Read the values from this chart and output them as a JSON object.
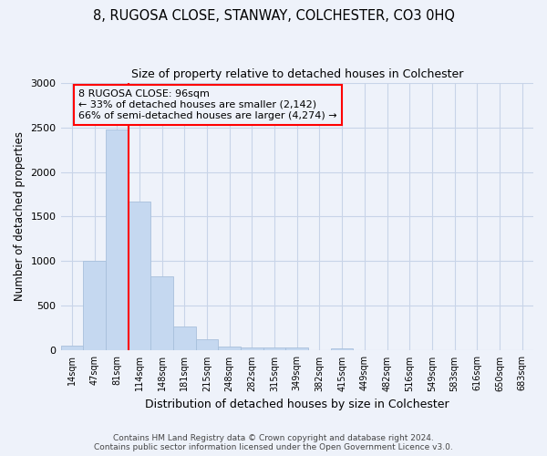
{
  "title": "8, RUGOSA CLOSE, STANWAY, COLCHESTER, CO3 0HQ",
  "subtitle": "Size of property relative to detached houses in Colchester",
  "xlabel": "Distribution of detached houses by size in Colchester",
  "ylabel": "Number of detached properties",
  "categories": [
    "14sqm",
    "47sqm",
    "81sqm",
    "114sqm",
    "148sqm",
    "181sqm",
    "215sqm",
    "248sqm",
    "282sqm",
    "315sqm",
    "349sqm",
    "382sqm",
    "415sqm",
    "449sqm",
    "482sqm",
    "516sqm",
    "549sqm",
    "583sqm",
    "616sqm",
    "650sqm",
    "683sqm"
  ],
  "values": [
    55,
    1000,
    2470,
    1670,
    830,
    270,
    130,
    50,
    40,
    40,
    35,
    0,
    20,
    0,
    0,
    0,
    0,
    0,
    0,
    0,
    0
  ],
  "bar_color": "#c5d8f0",
  "bar_edgecolor": "#a8c0dc",
  "vline_color": "red",
  "vline_index": 2.5,
  "annotation_title": "8 RUGOSA CLOSE: 96sqm",
  "annotation_line1": "← 33% of detached houses are smaller (2,142)",
  "annotation_line2": "66% of semi-detached houses are larger (4,274) →",
  "annotation_box_edgecolor": "red",
  "ylim": [
    0,
    3000
  ],
  "yticks": [
    0,
    500,
    1000,
    1500,
    2000,
    2500,
    3000
  ],
  "grid_color": "#c8d4e8",
  "background_color": "#eef2fa",
  "footer_line1": "Contains HM Land Registry data © Crown copyright and database right 2024.",
  "footer_line2": "Contains public sector information licensed under the Open Government Licence v3.0."
}
